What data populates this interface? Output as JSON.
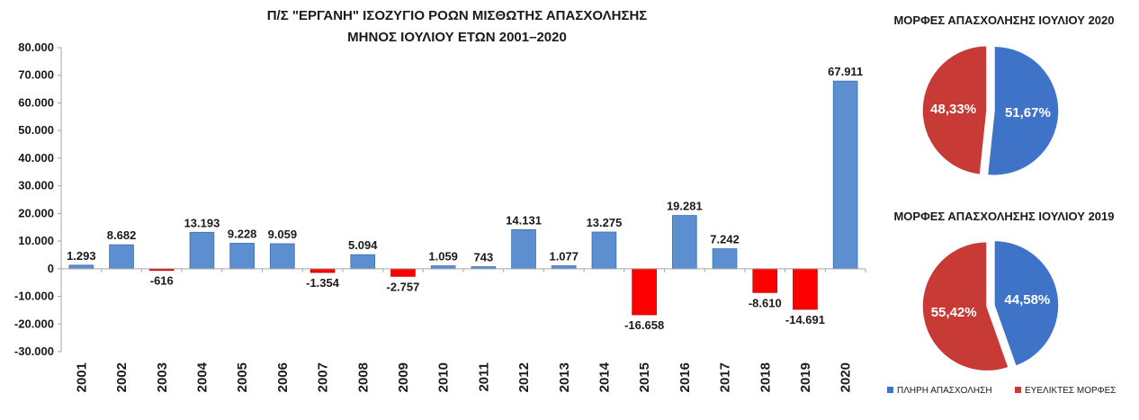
{
  "chart_data": [
    {
      "type": "bar",
      "title": "Π/Σ \"ΕΡΓΑΝΗ\" ΙΣΟΖΥΓΙΟ ΡΟΩΝ ΜΙΣΘΩΤΗΣ ΑΠΑΣΧΟΛΗΣΗΣ",
      "subtitle": "ΜΗΝΟΣ ΙΟΥΛΙΟΥ ΕΤΩΝ 2001–2020",
      "xlabel": "",
      "ylabel": "",
      "ylim": [
        -30000,
        80000
      ],
      "y_ticks": [
        80000,
        70000,
        60000,
        50000,
        40000,
        30000,
        20000,
        10000,
        0,
        -10000,
        -20000,
        -30000
      ],
      "y_tick_labels": [
        "80.000",
        "70.000",
        "60.000",
        "50.000",
        "40.000",
        "30.000",
        "20.000",
        "10.000",
        "0",
        "-10.000",
        "-20.000",
        "-30.000"
      ],
      "categories": [
        "2001",
        "2002",
        "2003",
        "2004",
        "2005",
        "2006",
        "2007",
        "2008",
        "2009",
        "2010",
        "2011",
        "2012",
        "2013",
        "2014",
        "2015",
        "2016",
        "2017",
        "2018",
        "2019",
        "2020"
      ],
      "values": [
        1293,
        8682,
        -616,
        13193,
        9228,
        9059,
        -1354,
        5094,
        -2757,
        1059,
        743,
        14131,
        1077,
        13275,
        -16658,
        19281,
        7242,
        -8610,
        -14691,
        67911
      ],
      "value_labels": [
        "1.293",
        "8.682",
        "-616",
        "13.193",
        "9.228",
        "9.059",
        "-1.354",
        "5.094",
        "-2.757",
        "1.059",
        "743",
        "14.131",
        "1.077",
        "13.275",
        "-16.658",
        "19.281",
        "7.242",
        "-8.610",
        "-14.691",
        "67.911"
      ],
      "colors": {
        "positive": "#5B8FD0",
        "negative": "#FF0000"
      },
      "grid": false
    },
    {
      "type": "pie",
      "title": "ΜΟΡΦΕΣ ΑΠΑΣΧΟΛΗΣΗΣ ΙΟΥΛΙΟΥ 2020",
      "categories": [
        "ΠΛΗΡΗ ΑΠΑΣΧΟΛΗΣΗ",
        "ΕΥΕΛΙΚΤΕΣ ΜΟΡΦΕΣ"
      ],
      "values": [
        51.67,
        48.33
      ],
      "value_labels": [
        "51,67%",
        "48,33%"
      ],
      "colors": [
        "#3E73C8",
        "#C83A36"
      ]
    },
    {
      "type": "pie",
      "title": "ΜΟΡΦΕΣ ΑΠΑΣΧΟΛΗΣΗΣ ΙΟΥΛΙΟΥ 2019",
      "categories": [
        "ΠΛΗΡΗ ΑΠΑΣΧΟΛΗΣΗ",
        "ΕΥΕΛΙΚΤΕΣ ΜΟΡΦΕΣ"
      ],
      "values": [
        44.58,
        55.42
      ],
      "value_labels": [
        "44,58%",
        "55,42%"
      ],
      "colors": [
        "#3E73C8",
        "#C83A36"
      ],
      "legend": "bottom"
    }
  ]
}
